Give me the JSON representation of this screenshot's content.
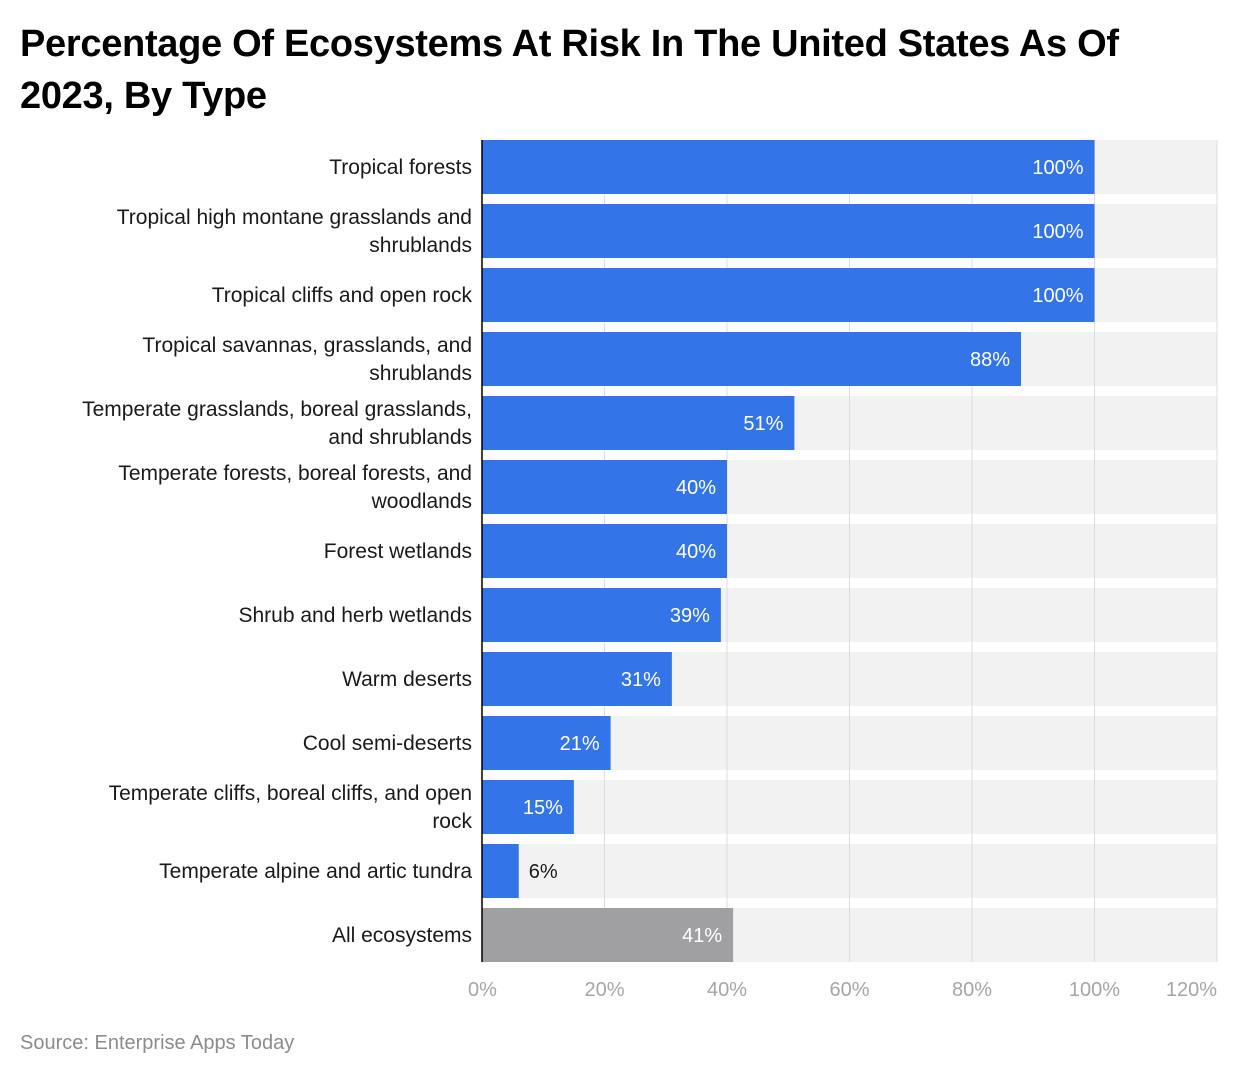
{
  "chart_data": {
    "type": "bar",
    "orientation": "horizontal",
    "title": "Percentage Of Ecosystems At Risk In The United States As Of 2023, By Type",
    "categories": [
      "Tropical forests",
      "Tropical high montane grasslands and shrublands",
      "Tropical cliffs and open rock",
      "Tropical savannas, grasslands, and shrublands",
      "Temperate grasslands, boreal grasslands, and shrublands",
      "Temperate forests, boreal forests, and woodlands",
      "Forest wetlands",
      "Shrub and herb wetlands",
      "Warm deserts",
      "Cool semi-deserts",
      "Temperate cliffs, boreal cliffs, and open rock",
      "Temperate alpine and artic tundra",
      "All ecosystems"
    ],
    "category_lines": [
      [
        "Tropical forests"
      ],
      [
        "Tropical high montane grasslands and",
        "shrublands"
      ],
      [
        "Tropical cliffs and open rock"
      ],
      [
        "Tropical savannas, grasslands, and",
        "shrublands"
      ],
      [
        "Temperate grasslands, boreal grasslands,",
        "and shrublands"
      ],
      [
        "Temperate forests, boreal forests, and",
        "woodlands"
      ],
      [
        "Forest wetlands"
      ],
      [
        "Shrub and herb wetlands"
      ],
      [
        "Warm deserts"
      ],
      [
        "Cool semi-deserts"
      ],
      [
        "Temperate cliffs, boreal cliffs, and open",
        "rock"
      ],
      [
        "Temperate alpine and artic tundra"
      ],
      [
        "All ecosystems"
      ]
    ],
    "values": [
      100,
      100,
      100,
      88,
      51,
      40,
      40,
      39,
      31,
      21,
      15,
      6,
      41
    ],
    "value_labels": [
      "100%",
      "100%",
      "100%",
      "88%",
      "51%",
      "40%",
      "40%",
      "39%",
      "31%",
      "21%",
      "15%",
      "6%",
      "41%"
    ],
    "highlight_index": 12,
    "xlim": [
      0,
      120
    ],
    "x_ticks": [
      0,
      20,
      40,
      60,
      80,
      100,
      120
    ],
    "x_tick_labels": [
      "0%",
      "20%",
      "40%",
      "60%",
      "80%",
      "100%",
      "120%"
    ],
    "xlabel": "",
    "ylabel": "",
    "grid": true,
    "colors": {
      "bar": "#3374e8",
      "highlight_bar": "#a0a0a2",
      "track": "#f2f2f2",
      "gridline": "#dcdcdc",
      "axis": "#000000",
      "label_inside": "#ffffff",
      "label_outside": "#1a1a1a"
    }
  },
  "source": "Source: Enterprise Apps Today"
}
